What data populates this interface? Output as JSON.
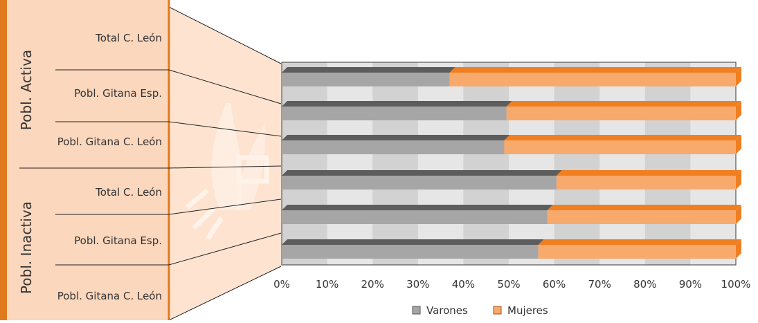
{
  "chart_data": {
    "type": "bar",
    "orientation": "horizontal",
    "stacked": "percent",
    "groups": [
      {
        "label": "Pobl. Activa",
        "categories": [
          "Total C. León",
          "Pobl. Gitana Esp.",
          "Pobl. Gitana C. León"
        ]
      },
      {
        "label": "Pobl. Inactiva",
        "categories": [
          "Total C. León",
          "Pobl. Gitana Esp.",
          "Pobl. Gitana C. León"
        ]
      }
    ],
    "series": [
      {
        "name": "Varones",
        "values": [
          37,
          49.5,
          49,
          60.5,
          58.5,
          56.5
        ]
      },
      {
        "name": "Mujeres",
        "values": [
          63,
          50.5,
          51,
          39.5,
          41.5,
          43.5
        ]
      }
    ],
    "xlim": [
      0,
      100
    ],
    "x_ticks": [
      "0%",
      "10%",
      "20%",
      "30%",
      "40%",
      "50%",
      "60%",
      "70%",
      "80%",
      "90%",
      "100%"
    ],
    "legend_position": "bottom",
    "colors": {
      "Varones": "#a6a6a6",
      "Varones_top": "#5d5d5d",
      "Mujeres": "#f8a96c",
      "Mujeres_top": "#f07f21",
      "panel": "#fbd7bd",
      "panel_border": "#e07a1e"
    }
  }
}
